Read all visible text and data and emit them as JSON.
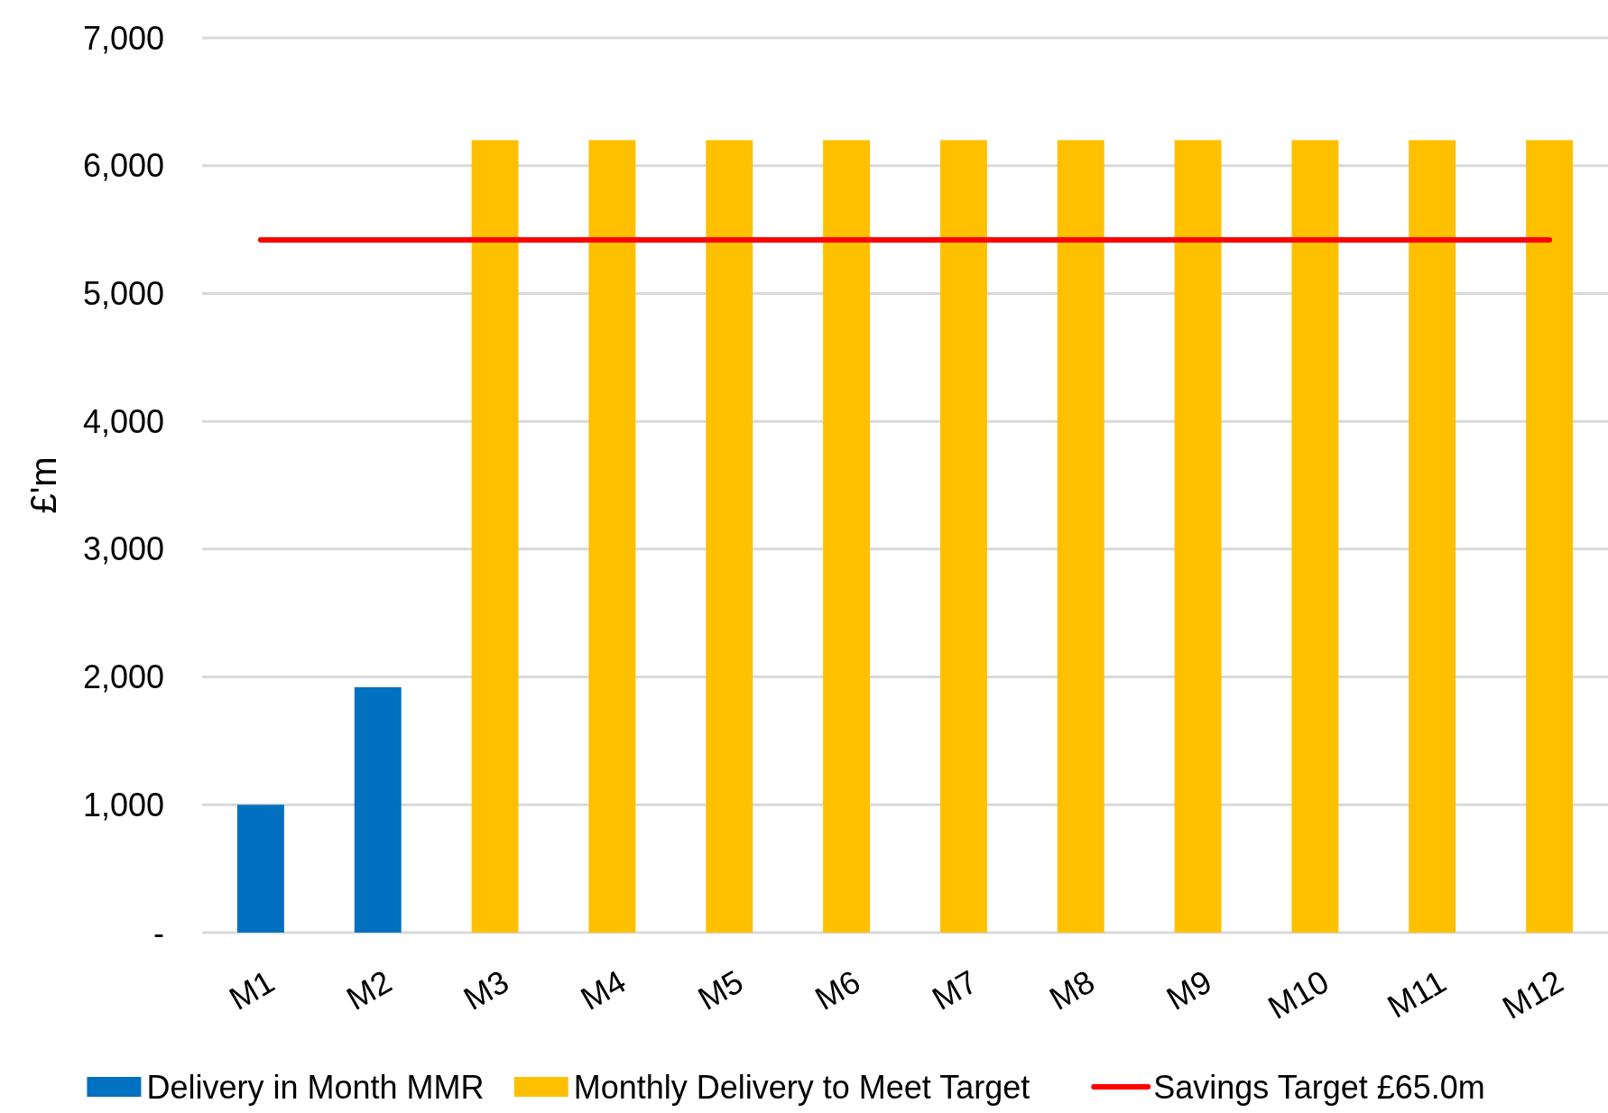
{
  "chart_data": {
    "type": "bar",
    "ylabel": "£'m",
    "categories": [
      "M1",
      "M2",
      "M3",
      "M4",
      "M5",
      "M6",
      "M7",
      "M8",
      "M9",
      "M10",
      "M11",
      "M12"
    ],
    "series": [
      {
        "name": "Delivery in Month MMR",
        "color": "#0070c0",
        "values": [
          1000,
          1920,
          null,
          null,
          null,
          null,
          null,
          null,
          null,
          null,
          null,
          null
        ]
      },
      {
        "name": "Monthly Delivery to Meet Target",
        "color": "#ffc000",
        "values": [
          null,
          null,
          6200,
          6200,
          6200,
          6200,
          6200,
          6200,
          6200,
          6200,
          6200,
          6200
        ]
      },
      {
        "name": "Savings Target £65.0m",
        "type": "line",
        "color": "#ff0000",
        "values": [
          5420,
          5420,
          5420,
          5420,
          5420,
          5420,
          5420,
          5420,
          5420,
          5420,
          5420,
          5420
        ]
      }
    ],
    "ylim": [
      0,
      7000
    ],
    "yticks": [
      {
        "value": 0,
        "label": "-"
      },
      {
        "value": 1000,
        "label": "1,000"
      },
      {
        "value": 2000,
        "label": "2,000"
      },
      {
        "value": 3000,
        "label": "3,000"
      },
      {
        "value": 4000,
        "label": "4,000"
      },
      {
        "value": 5000,
        "label": "5,000"
      },
      {
        "value": 6000,
        "label": "6,000"
      },
      {
        "value": 7000,
        "label": "7,000"
      }
    ],
    "grid": "y",
    "legend": "bottom"
  }
}
